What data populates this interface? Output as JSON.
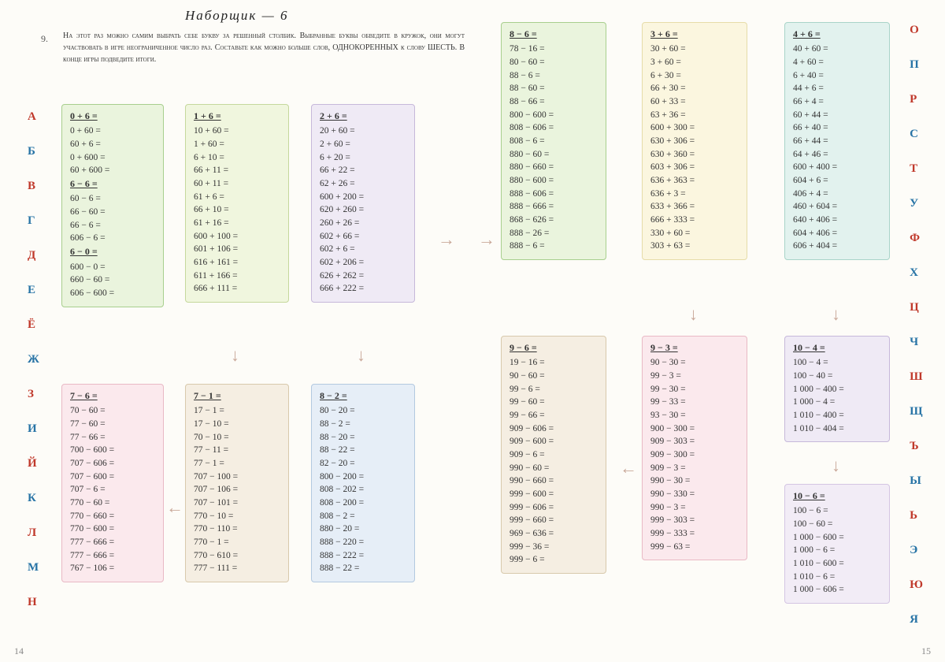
{
  "title": "Наборщик — 6",
  "exnum": "9.",
  "instruction": "На этот раз можно самим выбрать себе букву за решенный столбик. Выбранные буквы обведите в кружок, они могут участвовать в игре неограниченное число раз. Составьте как можно больше слов, ОДНОКОРЕННЫХ к слову ШЕСТЬ. В конце игры подведите итоги.",
  "letters_left": [
    "А",
    "Б",
    "В",
    "Г",
    "Д",
    "Е",
    "Ё",
    "Ж",
    "З",
    "И",
    "Й",
    "К",
    "Л",
    "М",
    "Н"
  ],
  "letters_right": [
    "О",
    "П",
    "Р",
    "С",
    "Т",
    "У",
    "Ф",
    "Х",
    "Ц",
    "Ч",
    "Ш",
    "Щ",
    "Ъ",
    "Ы",
    "Ь",
    "Э",
    "Ю",
    "Я"
  ],
  "page_left": "14",
  "page_right": "15",
  "boxes": {
    "b0": {
      "hdrs": [
        "0 + 6 =",
        "6 − 6 =",
        "6 − 0 ="
      ],
      "rows": [
        [
          "0 + 60 =",
          "60 + 6 =",
          "0 + 600 =",
          "60 + 600 ="
        ],
        [
          "60 − 6 =",
          "66 − 60 =",
          "66 − 6 =",
          "606 − 6 ="
        ],
        [
          "600 − 0 =",
          "660 − 60 =",
          "606 − 600 ="
        ]
      ]
    },
    "b1": {
      "hdrs": [
        "1 + 6 ="
      ],
      "rows": [
        [
          "10 + 60 =",
          "1 + 60 =",
          "6 + 10 =",
          "66 + 11 =",
          "60 + 11 =",
          "61 + 6 =",
          "66 + 10 =",
          "61 + 16 =",
          "600 + 100 =",
          "601 + 106 =",
          "616 + 161 =",
          "611 + 166 =",
          "666 + 111 ="
        ]
      ]
    },
    "b2": {
      "hdrs": [
        "2 + 6 ="
      ],
      "rows": [
        [
          "20 + 60 =",
          "2 + 60 =",
          "6 + 20 =",
          "66 + 22 =",
          "62 + 26 =",
          "600 + 200 =",
          "620 + 260 =",
          "260 + 26 =",
          "602 + 66 =",
          "602 + 6 =",
          "602 + 206 =",
          "626 + 262 =",
          "666 + 222 ="
        ]
      ]
    },
    "b3": {
      "hdrs": [
        "7 − 6 ="
      ],
      "rows": [
        [
          "70 − 60 =",
          "77 − 60 =",
          "77 − 66 =",
          "700 − 600 =",
          "707 − 606 =",
          "707 − 600 =",
          "707 − 6 =",
          "770 − 60 =",
          "770 − 660 =",
          "770 − 600 =",
          "777 − 666 =",
          "777 − 666 =",
          "767 − 106 ="
        ]
      ]
    },
    "b4": {
      "hdrs": [
        "7 − 1 ="
      ],
      "rows": [
        [
          "17 − 1 =",
          "17 − 10 =",
          "70 − 10 =",
          "77 − 11 =",
          "77 − 1 =",
          "707 − 100 =",
          "707 − 106 =",
          "707 − 101 =",
          "770 − 10 =",
          "770 − 110 =",
          "770 − 1 =",
          "770 − 610 =",
          "777 − 111 ="
        ]
      ]
    },
    "b5": {
      "hdrs": [
        "8 − 2 ="
      ],
      "rows": [
        [
          "80 − 20 =",
          "88 − 2 =",
          "88 − 20 =",
          "88 − 22 =",
          "82 − 20 =",
          "800 − 200 =",
          "808 − 202 =",
          "808 − 200 =",
          "808 − 2 =",
          "880 − 20 =",
          "888 − 220 =",
          "888 − 222 =",
          "888 − 22 ="
        ]
      ]
    },
    "b6": {
      "hdrs": [
        "8 − 6 ="
      ],
      "rows": [
        [
          "78 − 16 =",
          "80 − 60 =",
          "88 − 6 =",
          "88 − 60 =",
          "88 − 66 =",
          "800 − 600 =",
          "808 − 606 =",
          "808 − 6 =",
          "880 − 60 =",
          "880 − 660 =",
          "880 − 600 =",
          "888 − 606 =",
          "888 − 666 =",
          "868 − 626 =",
          "888 − 26 =",
          "888 − 6 ="
        ]
      ]
    },
    "b7": {
      "hdrs": [
        "3 + 6 ="
      ],
      "rows": [
        [
          "30 + 60 =",
          "3 + 60 =",
          "6 + 30 =",
          "66 + 30 =",
          "60 + 33 =",
          "63 + 36 =",
          "600 + 300 =",
          "630 + 306 =",
          "630 + 360 =",
          "603 + 306 =",
          "636 + 363 =",
          "636 + 3 =",
          "633 + 366 =",
          "666 + 333 =",
          "330 + 60 =",
          "303 + 63 ="
        ]
      ]
    },
    "b8": {
      "hdrs": [
        "4 + 6 ="
      ],
      "rows": [
        [
          "40 + 60 =",
          "4 + 60 =",
          "6 + 40 =",
          "44 + 6 =",
          "66 + 4 =",
          "60 + 44 =",
          "66 + 40 =",
          "66 + 44 =",
          "64 + 46 =",
          "600 + 400 =",
          "604 + 6 =",
          "406 + 4 =",
          "460 + 604 =",
          "640 + 406 =",
          "604 + 406 =",
          "606 + 404 ="
        ]
      ]
    },
    "b9": {
      "hdrs": [
        "9 − 6 ="
      ],
      "rows": [
        [
          "19 − 16 =",
          "90 − 60 =",
          "99 − 6 =",
          "99 − 60 =",
          "99 − 66 =",
          "909 − 606 =",
          "909 − 600 =",
          "909 − 6 =",
          "990 − 60 =",
          "990 − 660 =",
          "999 − 600 =",
          "999 − 606 =",
          "999 − 660 =",
          "969 − 636 =",
          "999 − 36 =",
          "999 − 6 ="
        ]
      ]
    },
    "b10": {
      "hdrs": [
        "9 − 3 ="
      ],
      "rows": [
        [
          "90 − 30 =",
          "99 − 3 =",
          "99 − 30 =",
          "99 − 33 =",
          "93 − 30 =",
          "900 − 300 =",
          "909 − 303 =",
          "909 − 300 =",
          "909 − 3 =",
          "990 − 30 =",
          "990 − 330 =",
          "990 − 3 =",
          "999 − 303 =",
          "999 − 333 =",
          "999 − 63 ="
        ]
      ]
    },
    "b11": {
      "hdrs": [
        "10 − 4 ="
      ],
      "rows": [
        [
          "100 − 4 =",
          "100 − 40 =",
          "1 000 − 400 =",
          "1 000 − 4 =",
          "1 010 − 400 =",
          "1 010 − 404 ="
        ]
      ]
    },
    "b12": {
      "hdrs": [
        "10 − 6 ="
      ],
      "rows": [
        [
          "100 − 6 =",
          "100 − 60 =",
          "1 000 − 600 =",
          "1 000 − 6 =",
          "1 010 − 600 =",
          "1 010 − 6 =",
          "1 000 − 606 ="
        ]
      ]
    }
  }
}
